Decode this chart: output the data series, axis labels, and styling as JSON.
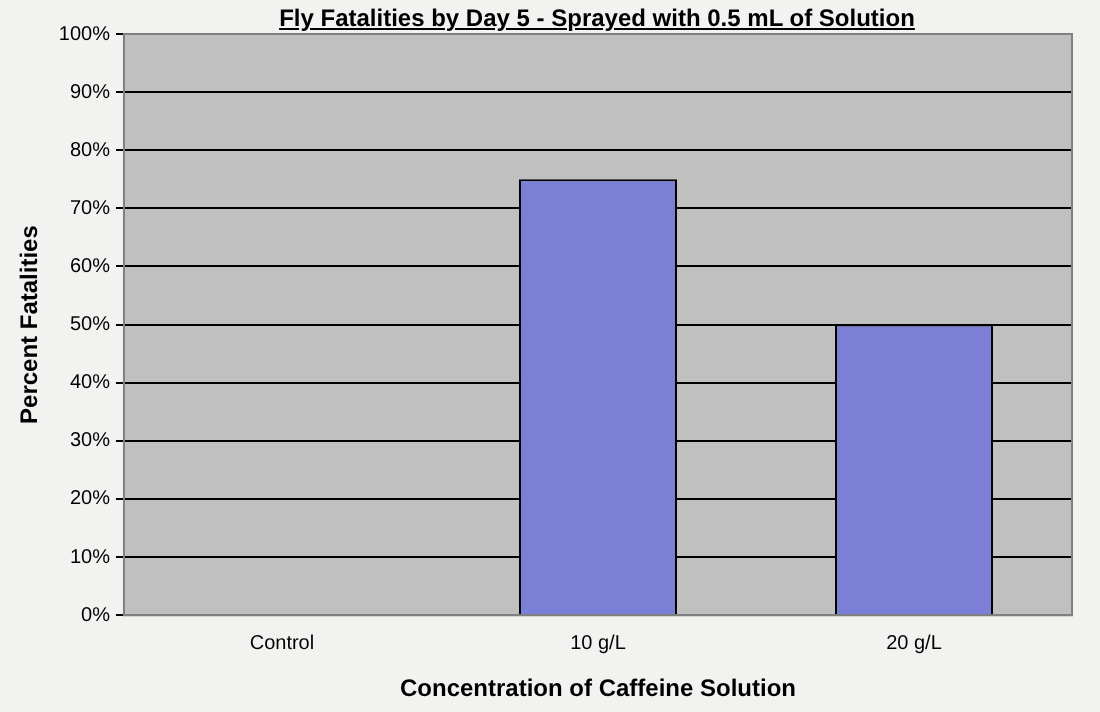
{
  "chart_data": {
    "type": "bar",
    "title": "Fly Fatalities by Day 5 - Sprayed with 0.5 mL of Solution",
    "xlabel": "Concentration of Caffeine Solution",
    "ylabel": "Percent Fatalities",
    "categories": [
      "Control",
      "10 g/L",
      "20 g/L"
    ],
    "series": [
      {
        "color": "#7b80d6",
        "values": [
          0,
          75,
          50
        ]
      }
    ],
    "ylim": [
      0,
      100
    ],
    "yticks": [
      {
        "value": 0,
        "label": "0%"
      },
      {
        "value": 10,
        "label": "10%"
      },
      {
        "value": 20,
        "label": "20%"
      },
      {
        "value": 30,
        "label": "30%"
      },
      {
        "value": 40,
        "label": "40%"
      },
      {
        "value": 50,
        "label": "50%"
      },
      {
        "value": 60,
        "label": "60%"
      },
      {
        "value": 70,
        "label": "70%"
      },
      {
        "value": 80,
        "label": "80%"
      },
      {
        "value": 90,
        "label": "90%"
      },
      {
        "value": 100,
        "label": "100%"
      }
    ],
    "grid": "y",
    "legend": false
  }
}
